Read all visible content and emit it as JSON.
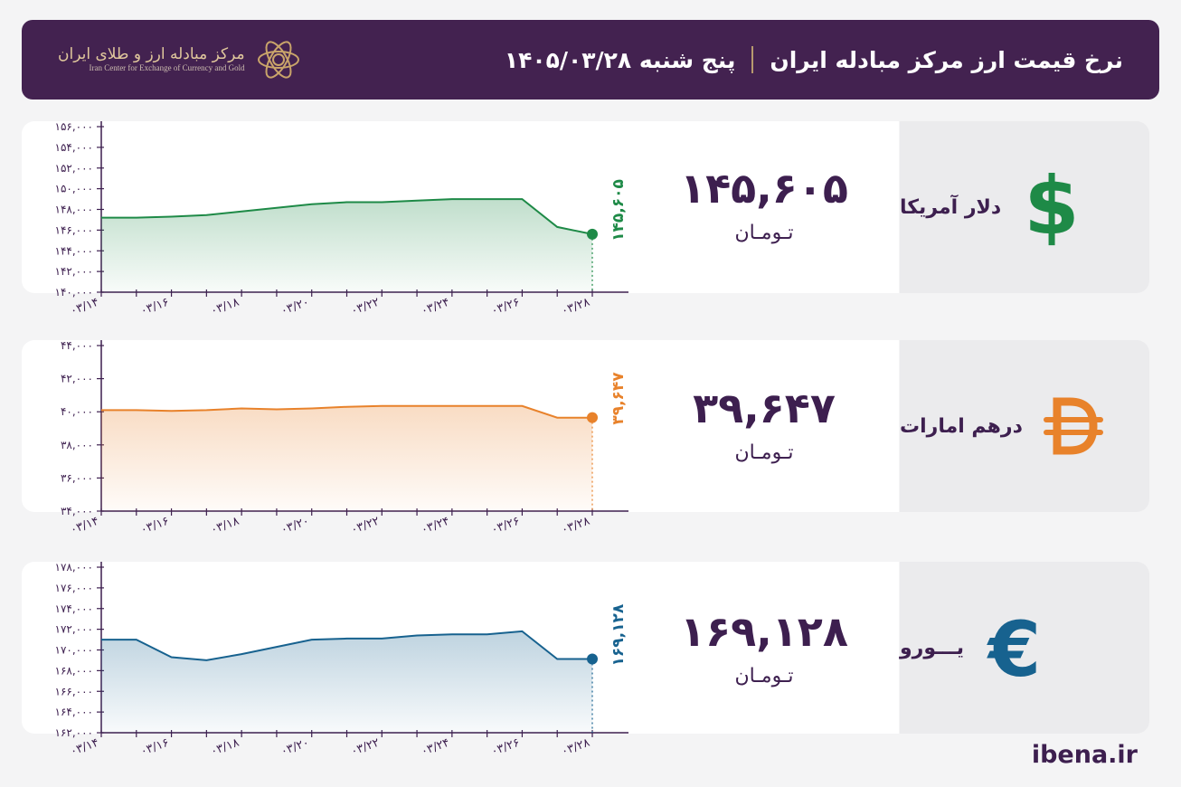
{
  "header": {
    "title": "نرخ قیمت ارز مرکز مبادله ایران",
    "date": "پنج شنبه ۱۴۰۵/۰۳/۲۸",
    "logo_fa": "مرکز مبادله ارز و طلای ایران",
    "logo_en": "Iran Center for Exchange of Currency and Gold"
  },
  "footer": {
    "site": "ibena.ir"
  },
  "unit": "تـومـان",
  "currencies": [
    {
      "name": "دلار آمریکا",
      "price": "۱۴۵,۶۰۵",
      "color": "#1e8a47",
      "icon": "dollar-icon"
    },
    {
      "name": "درهم امارات",
      "price": "۳۹,۶۴۷",
      "color": "#e8822b",
      "icon": "dirham-icon"
    },
    {
      "name": "یـــورو",
      "price": "۱۶۹,۱۲۸",
      "color": "#17628f",
      "icon": "euro-icon"
    }
  ],
  "chart_data": [
    {
      "type": "area",
      "series_name": "دلار آمریکا",
      "x": [
        "۰۳/۱۴",
        "",
        "۰۳/۱۶",
        "",
        "۰۳/۱۸",
        "",
        "۰۳/۲۰",
        "",
        "۰۳/۲۲",
        "",
        "۰۳/۲۴",
        "",
        "۰۳/۲۶",
        "",
        "۰۳/۲۸"
      ],
      "values": [
        147200,
        147200,
        147300,
        147450,
        147800,
        148150,
        148500,
        148700,
        148700,
        148850,
        149000,
        149000,
        149000,
        146300,
        145605
      ],
      "ylim": [
        140000,
        156000
      ],
      "yticks": [
        "۱۴۰,۰۰۰",
        "۱۴۲,۰۰۰",
        "۱۴۴,۰۰۰",
        "۱۴۶,۰۰۰",
        "۱۴۸,۰۰۰",
        "۱۵۰,۰۰۰",
        "۱۵۲,۰۰۰",
        "۱۵۴,۰۰۰",
        "۱۵۶,۰۰۰"
      ],
      "ytick_values": [
        140000,
        142000,
        144000,
        146000,
        148000,
        150000,
        152000,
        154000,
        156000
      ],
      "last_label": "۱۴۵,۶۰۵"
    },
    {
      "type": "area",
      "series_name": "درهم امارات",
      "x": [
        "۰۳/۱۴",
        "",
        "۰۳/۱۶",
        "",
        "۰۳/۱۸",
        "",
        "۰۳/۲۰",
        "",
        "۰۳/۲۲",
        "",
        "۰۳/۲۴",
        "",
        "۰۳/۲۶",
        "",
        "۰۳/۲۸"
      ],
      "values": [
        40100,
        40100,
        40050,
        40100,
        40200,
        40150,
        40200,
        40300,
        40350,
        40350,
        40350,
        40350,
        40350,
        39647,
        39647
      ],
      "ylim": [
        34000,
        44000
      ],
      "yticks": [
        "۳۴,۰۰۰",
        "۳۶,۰۰۰",
        "۳۸,۰۰۰",
        "۴۰,۰۰۰",
        "۴۲,۰۰۰",
        "۴۴,۰۰۰"
      ],
      "ytick_values": [
        34000,
        36000,
        38000,
        40000,
        42000,
        44000
      ],
      "last_label": "۳۹,۶۴۷"
    },
    {
      "type": "area",
      "series_name": "یـــورو",
      "x": [
        "۰۳/۱۴",
        "",
        "۰۳/۱۶",
        "",
        "۰۳/۱۸",
        "",
        "۰۳/۲۰",
        "",
        "۰۳/۲۲",
        "",
        "۰۳/۲۴",
        "",
        "۰۳/۲۶",
        "",
        "۰۳/۲۸"
      ],
      "values": [
        171000,
        171000,
        169300,
        169000,
        169600,
        170300,
        171000,
        171100,
        171100,
        171400,
        171500,
        171500,
        171800,
        169128,
        169128
      ],
      "ylim": [
        162000,
        178000
      ],
      "yticks": [
        "۱۶۲,۰۰۰",
        "۱۶۴,۰۰۰",
        "۱۶۶,۰۰۰",
        "۱۶۸,۰۰۰",
        "۱۷۰,۰۰۰",
        "۱۷۲,۰۰۰",
        "۱۷۴,۰۰۰",
        "۱۷۶,۰۰۰",
        "۱۷۸,۰۰۰"
      ],
      "ytick_values": [
        162000,
        164000,
        166000,
        168000,
        170000,
        172000,
        174000,
        176000,
        178000
      ],
      "last_label": "۱۶۹,۱۲۸"
    }
  ]
}
